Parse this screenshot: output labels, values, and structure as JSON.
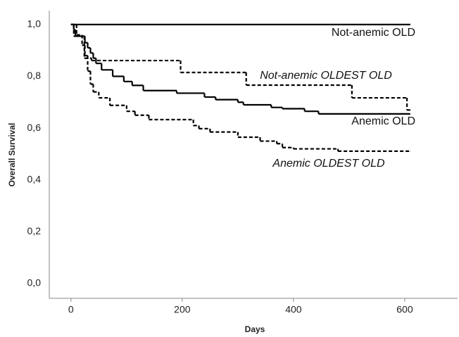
{
  "chart_data": {
    "type": "step",
    "x_label": "Days",
    "y_label": "Overall Survival",
    "xlim": [
      -39,
      695
    ],
    "ylim": [
      -0.057,
      1.054
    ],
    "xticks": [
      0,
      200,
      400,
      600
    ],
    "yticks": [
      {
        "value": 0,
        "label": "0,0"
      },
      {
        "value": 0.2,
        "label": "0,2"
      },
      {
        "value": 0.4,
        "label": "0,4"
      },
      {
        "value": 0.6,
        "label": "0,6"
      },
      {
        "value": 0.8,
        "label": "0,8"
      },
      {
        "value": 1.0,
        "label": "1,0"
      }
    ],
    "series": [
      {
        "name": "Not-anemic OLD",
        "color": "#000000",
        "dash": false,
        "x": [
          0,
          610
        ],
        "values": [
          1.0,
          1.0
        ]
      },
      {
        "name": "Not-anemic OLDEST OLD",
        "color": "#000000",
        "dash": true,
        "x": [
          0,
          5,
          24,
          37,
          197,
          315,
          505,
          604,
          610
        ],
        "values": [
          1.0,
          0.955,
          0.87,
          0.861,
          0.815,
          0.766,
          0.717,
          0.67,
          0.67
        ]
      },
      {
        "name": "Anemic OLD",
        "color": "#000000",
        "dash": false,
        "x": [
          0,
          5,
          8,
          25,
          30,
          35,
          40,
          45,
          55,
          75,
          95,
          110,
          130,
          190,
          240,
          260,
          300,
          310,
          360,
          380,
          420,
          445,
          610
        ],
        "values": [
          1.0,
          0.98,
          0.955,
          0.93,
          0.91,
          0.89,
          0.87,
          0.85,
          0.825,
          0.8,
          0.78,
          0.765,
          0.745,
          0.735,
          0.72,
          0.71,
          0.7,
          0.69,
          0.68,
          0.675,
          0.665,
          0.655,
          0.655
        ]
      },
      {
        "name": "Anemic OLDEST OLD",
        "color": "#000000",
        "dash": true,
        "x": [
          0,
          10,
          20,
          25,
          30,
          35,
          40,
          50,
          70,
          100,
          115,
          140,
          220,
          230,
          250,
          300,
          340,
          370,
          380,
          400,
          480,
          610
        ],
        "values": [
          1.0,
          0.96,
          0.92,
          0.88,
          0.82,
          0.77,
          0.74,
          0.717,
          0.688,
          0.665,
          0.65,
          0.633,
          0.61,
          0.598,
          0.585,
          0.565,
          0.55,
          0.54,
          0.525,
          0.52,
          0.511,
          0.511
        ]
      }
    ]
  }
}
